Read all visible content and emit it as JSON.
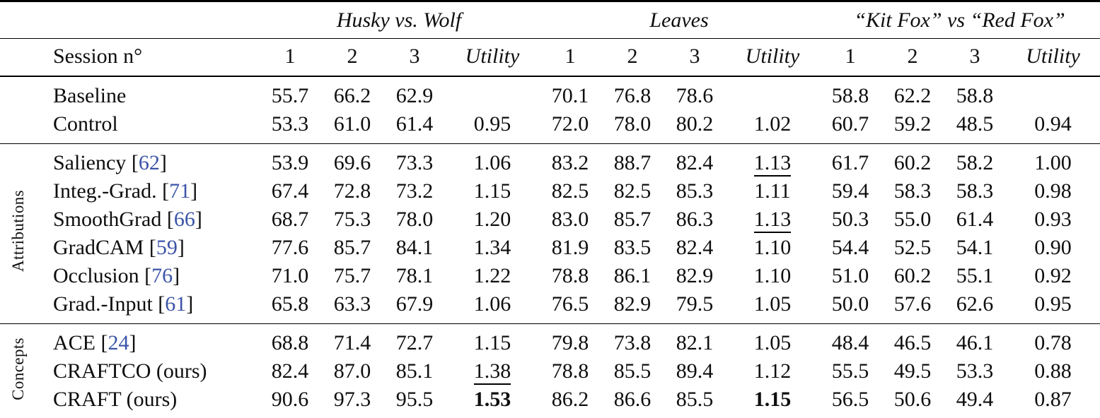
{
  "accent_color": "#3b54a8",
  "table": {
    "groups": [
      "Husky vs. Wolf",
      "Leaves",
      "“Kit Fox” vs “Red Fox”"
    ],
    "header": {
      "row_label": "Session n°",
      "cols": [
        "1",
        "2",
        "3",
        "Utility",
        "1",
        "2",
        "3",
        "Utility",
        "1",
        "2",
        "3",
        "Utility"
      ]
    },
    "sections": [
      {
        "side_label": "",
        "rows": [
          {
            "label": "Baseline",
            "cite": null,
            "values": [
              "55.7",
              "66.2",
              "62.9",
              "",
              "70.1",
              "76.8",
              "78.6",
              "",
              "58.8",
              "62.2",
              "58.8",
              ""
            ]
          },
          {
            "label": "Control",
            "cite": null,
            "values": [
              "53.3",
              "61.0",
              "61.4",
              "0.95",
              "72.0",
              "78.0",
              "80.2",
              "1.02",
              "60.7",
              "59.2",
              "48.5",
              "0.94"
            ]
          }
        ]
      },
      {
        "side_label": "Attributions",
        "rows": [
          {
            "label": "Saliency",
            "cite": "62",
            "values": [
              "53.9",
              "69.6",
              "73.3",
              "1.06",
              "83.2",
              "88.7",
              "82.4",
              {
                "v": "1.13",
                "style": "underline"
              },
              "61.7",
              "60.2",
              "58.2",
              "1.00"
            ]
          },
          {
            "label": "Integ.-Grad.",
            "cite": "71",
            "values": [
              "67.4",
              "72.8",
              "73.2",
              "1.15",
              "82.5",
              "82.5",
              "85.3",
              "1.11",
              "59.4",
              "58.3",
              "58.3",
              "0.98"
            ]
          },
          {
            "label": "SmoothGrad",
            "cite": "66",
            "values": [
              "68.7",
              "75.3",
              "78.0",
              "1.20",
              "83.0",
              "85.7",
              "86.3",
              {
                "v": "1.13",
                "style": "underline"
              },
              "50.3",
              "55.0",
              "61.4",
              "0.93"
            ]
          },
          {
            "label": "GradCAM",
            "cite": "59",
            "values": [
              "77.6",
              "85.7",
              "84.1",
              "1.34",
              "81.9",
              "83.5",
              "82.4",
              "1.10",
              "54.4",
              "52.5",
              "54.1",
              "0.90"
            ]
          },
          {
            "label": "Occlusion",
            "cite": "76",
            "values": [
              "71.0",
              "75.7",
              "78.1",
              "1.22",
              "78.8",
              "86.1",
              "82.9",
              "1.10",
              "51.0",
              "60.2",
              "55.1",
              "0.92"
            ]
          },
          {
            "label": "Grad.-Input",
            "cite": "61",
            "values": [
              "65.8",
              "63.3",
              "67.9",
              "1.06",
              "76.5",
              "82.9",
              "79.5",
              "1.05",
              "50.0",
              "57.6",
              "62.6",
              "0.95"
            ]
          }
        ]
      },
      {
        "side_label": "Concepts",
        "rows": [
          {
            "label": "ACE",
            "cite": "24",
            "values": [
              "68.8",
              "71.4",
              "72.7",
              "1.15",
              "79.8",
              "73.8",
              "82.1",
              "1.05",
              "48.4",
              "46.5",
              "46.1",
              "0.78"
            ]
          },
          {
            "label": "CRAFTCO (ours)",
            "cite": null,
            "values": [
              "82.4",
              "87.0",
              "85.1",
              {
                "v": "1.38",
                "style": "underline"
              },
              "78.8",
              "85.5",
              "89.4",
              "1.12",
              "55.5",
              "49.5",
              "53.3",
              "0.88"
            ]
          },
          {
            "label": "CRAFT (ours)",
            "cite": null,
            "values": [
              "90.6",
              "97.3",
              "95.5",
              {
                "v": "1.53",
                "style": "bold"
              },
              "86.2",
              "86.6",
              "85.5",
              {
                "v": "1.15",
                "style": "bold"
              },
              "56.5",
              "50.6",
              "49.4",
              "0.87"
            ]
          }
        ]
      }
    ]
  }
}
